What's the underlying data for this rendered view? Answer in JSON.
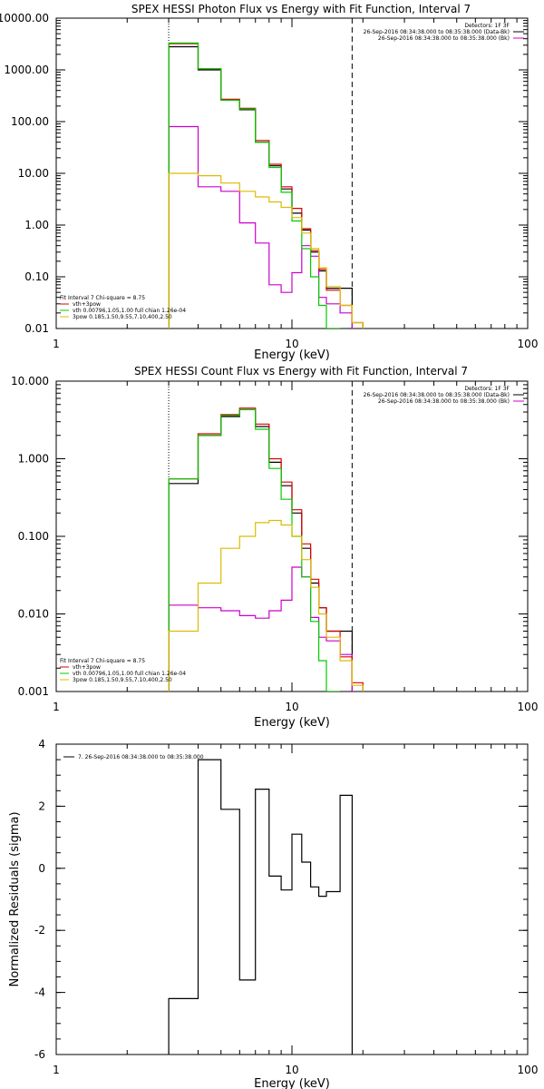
{
  "chart_data": [
    {
      "type": "line",
      "title": "SPEX HESSI Photon Flux vs Energy with Fit Function, Interval 7",
      "xlabel": "Energy (keV)",
      "ylabel": "",
      "x_scale": "log",
      "y_scale": "log",
      "xlim": [
        1,
        100
      ],
      "ylim": [
        0.01,
        10000
      ],
      "x_ticks": [
        {
          "v": 1,
          "label": "1"
        },
        {
          "v": 10,
          "label": "10"
        },
        {
          "v": 100,
          "label": "100"
        }
      ],
      "y_ticks": [
        {
          "v": 0.01,
          "label": "0.01"
        },
        {
          "v": 0.1,
          "label": "0.10"
        },
        {
          "v": 1,
          "label": "1.00"
        },
        {
          "v": 10,
          "label": "10.00"
        },
        {
          "v": 100,
          "label": "100.00"
        },
        {
          "v": 1000,
          "label": "1000.00"
        },
        {
          "v": 10000,
          "label": "10000.00"
        }
      ],
      "vlines": [
        {
          "x": 3,
          "style": "dotted"
        },
        {
          "x": 18,
          "style": "dashed"
        }
      ],
      "legend_top": [
        "Detectors: 1F 3F",
        "26-Sep-2016 08:34:38.000 to 08:35:38.000 (Data-Bk)",
        "26-Sep-2016 08:34:38.000 to 08:35:38.000 (Bk)"
      ],
      "legend_bottom": [
        "Fit Interval 7   Chi-square = 8.75",
        "vth+3pow",
        "vth 0.00796,1.05,1.00  full chian 1.26e-04",
        "3pow 0.185,1.50,9.55,7.10,400,2.50"
      ],
      "edges": [
        3,
        4,
        5,
        6,
        7,
        8,
        9,
        10,
        11,
        12,
        13,
        14,
        16,
        18,
        20
      ],
      "series": [
        {
          "name": "26-Sep-2016 08:34:38.000 to 08:35:38.000 (Data-Bk)",
          "color": "#000000",
          "values": [
            2800,
            1000,
            260,
            170,
            40,
            14,
            5,
            1.7,
            0.8,
            0.3,
            0.13,
            0.06,
            0.06,
            null
          ]
        },
        {
          "name": "26-Sep-2016 08:34:38.000 to 08:35:38.000 (Bk)",
          "color": "#cc00cc",
          "values": [
            80,
            5.5,
            4.5,
            1.1,
            0.45,
            0.07,
            0.05,
            0.12,
            0.4,
            0.25,
            0.04,
            0.03,
            0.02,
            null
          ]
        },
        {
          "name": "vth+3pow",
          "color": "#dd0000",
          "values": [
            3200,
            1050,
            270,
            180,
            43,
            15,
            5.5,
            2.1,
            0.85,
            0.32,
            0.14,
            0.055,
            0.028,
            0.013
          ]
        },
        {
          "name": "vth 0.00796,1.05,1.00  full chian 1.26e-04",
          "color": "#00cc00",
          "values": [
            3300,
            1050,
            260,
            175,
            40,
            13,
            4.3,
            1.2,
            0.35,
            0.1,
            0.028,
            0.008,
            null,
            null
          ]
        },
        {
          "name": "3pow 0.185,1.50,9.55,7.10,400,2.50",
          "color": "#ddbb00",
          "values": [
            10,
            9,
            6.5,
            4.5,
            3.5,
            2.8,
            2.2,
            1.4,
            0.7,
            0.35,
            0.15,
            0.065,
            0.028,
            0.013
          ]
        }
      ]
    },
    {
      "type": "line",
      "title": "SPEX HESSI Count Flux vs Energy with Fit Function, Interval 7",
      "xlabel": "Energy (keV)",
      "ylabel": "",
      "x_scale": "log",
      "y_scale": "log",
      "xlim": [
        1,
        100
      ],
      "ylim": [
        0.001,
        10
      ],
      "x_ticks": [
        {
          "v": 1,
          "label": "1"
        },
        {
          "v": 10,
          "label": "10"
        },
        {
          "v": 100,
          "label": "100"
        }
      ],
      "y_ticks": [
        {
          "v": 0.001,
          "label": "0.001"
        },
        {
          "v": 0.01,
          "label": "0.010"
        },
        {
          "v": 0.1,
          "label": "0.100"
        },
        {
          "v": 1,
          "label": "1.000"
        },
        {
          "v": 10,
          "label": "10.000"
        }
      ],
      "vlines": [
        {
          "x": 3,
          "style": "dotted"
        },
        {
          "x": 18,
          "style": "dashed"
        }
      ],
      "legend_top": [
        "Detectors: 1F 3F",
        "26-Sep-2016 08:34:38.000 to 08:35:38.000 (Data-Bk)",
        "26-Sep-2016 08:34:38.000 to 08:35:38.000 (Bk)"
      ],
      "legend_bottom": [
        "Fit Interval 7   Chi-square = 8.75",
        "vth+3pow",
        "vth 0.00796,1.05,1.00  full chian 1.26e-04",
        "3pow 0.185,1.50,9.55,7.10,400,2.50"
      ],
      "edges": [
        3,
        4,
        5,
        6,
        7,
        8,
        9,
        10,
        11,
        12,
        13,
        14,
        16,
        18,
        20
      ],
      "series": [
        {
          "name": "26-Sep-2016 08:34:38.000 to 08:35:38.000 (Data-Bk)",
          "color": "#000000",
          "values": [
            0.48,
            2.0,
            3.5,
            4.3,
            2.6,
            0.9,
            0.45,
            0.2,
            0.07,
            0.025,
            0.012,
            0.006,
            0.006,
            null
          ]
        },
        {
          "name": "26-Sep-2016 08:34:38.000 to 08:35:38.000 (Bk)",
          "color": "#cc00cc",
          "values": [
            0.013,
            0.012,
            0.011,
            0.0095,
            0.0088,
            0.011,
            0.015,
            0.04,
            0.03,
            0.009,
            0.005,
            0.0045,
            0.003,
            null
          ]
        },
        {
          "name": "vth+3pow",
          "color": "#dd0000",
          "values": [
            0.55,
            2.1,
            3.7,
            4.5,
            2.8,
            1.0,
            0.5,
            0.22,
            0.08,
            0.028,
            0.012,
            0.006,
            0.0028,
            0.0013
          ]
        },
        {
          "name": "vth 0.00796,1.05,1.00  full chian 1.26e-04",
          "color": "#00cc00",
          "values": [
            0.55,
            2.0,
            3.6,
            4.3,
            2.4,
            0.75,
            0.3,
            0.1,
            0.03,
            0.008,
            0.0025,
            0.0008,
            null,
            null
          ]
        },
        {
          "name": "3pow 0.185,1.50,9.55,7.10,400,2.50",
          "color": "#ddbb00",
          "values": [
            0.006,
            0.025,
            0.07,
            0.1,
            0.15,
            0.16,
            0.14,
            0.1,
            0.05,
            0.022,
            0.01,
            0.005,
            0.0025,
            0.0012
          ]
        }
      ]
    },
    {
      "type": "line",
      "title": "",
      "xlabel": "Energy (keV)",
      "ylabel": "Normalized Residuals (sigma)",
      "x_scale": "log",
      "y_scale": "linear",
      "xlim": [
        1,
        100
      ],
      "ylim": [
        -6,
        4
      ],
      "x_ticks": [
        {
          "v": 1,
          "label": "1"
        },
        {
          "v": 10,
          "label": "10"
        },
        {
          "v": 100,
          "label": "100"
        }
      ],
      "y_ticks": [
        {
          "v": -6,
          "label": "-6"
        },
        {
          "v": -4,
          "label": "-4"
        },
        {
          "v": -2,
          "label": "-2"
        },
        {
          "v": 0,
          "label": "0"
        },
        {
          "v": 2,
          "label": "2"
        },
        {
          "v": 4,
          "label": "4"
        }
      ],
      "vlines": [],
      "legend_top": [
        "7. 26-Sep-2016 08:34:38.000 to 08:35:38.000"
      ],
      "legend_bottom": [],
      "edges": [
        3,
        4,
        5,
        6,
        7,
        8,
        9,
        10,
        11,
        12,
        13,
        14,
        16,
        18
      ],
      "series": [
        {
          "name": "7. 26-Sep-2016 08:34:38.000 to 08:35:38.000",
          "color": "#000000",
          "values": [
            -4.2,
            3.5,
            1.9,
            -3.6,
            2.55,
            -0.25,
            -0.7,
            1.1,
            0.2,
            -0.6,
            -0.9,
            -0.75,
            2.35
          ],
          "drop_to_bottom": true
        }
      ]
    }
  ]
}
